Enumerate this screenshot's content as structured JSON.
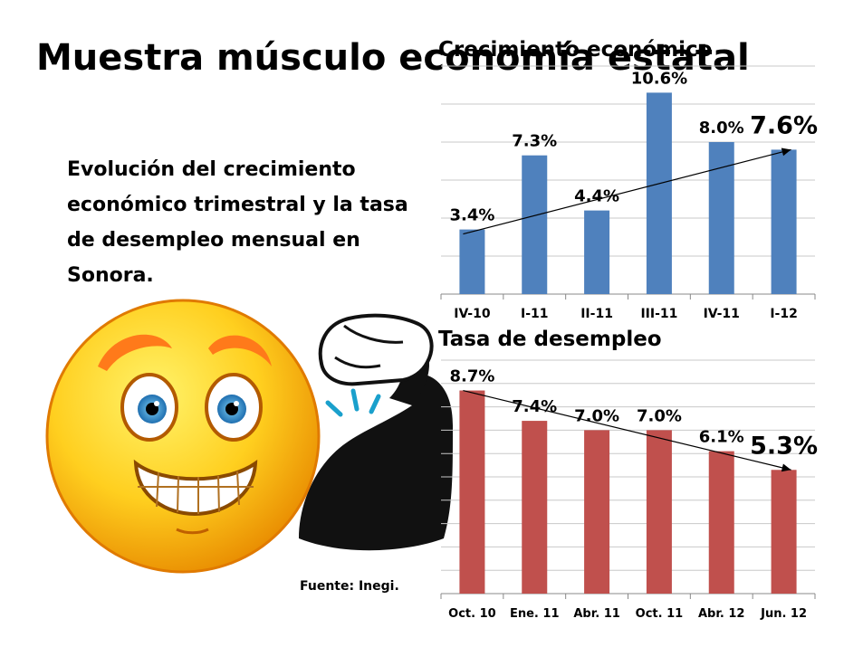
{
  "title": "Muestra músculo economía estatal",
  "subtitle": "Evolución del crecimiento económico trimestral y la tasa de desempleo mensual en Sonora.",
  "source": "Fuente: Inegi.",
  "colors": {
    "growth_bar": "#4f81bd",
    "unemployment_bar": "#c0504d",
    "face": "#f7b500",
    "arm": "#111111"
  },
  "chart_data": [
    {
      "type": "bar",
      "title": "Crecimiento económico",
      "categories": [
        "IV-10",
        "I-11",
        "II-11",
        "III-11",
        "IV-11",
        "I-12"
      ],
      "values": [
        3.4,
        7.3,
        4.4,
        10.6,
        8.0,
        7.6
      ],
      "labels": [
        "3.4%",
        "7.3%",
        "4.4%",
        "10.6%",
        "8.0%",
        "7.6%"
      ],
      "ylim": [
        0,
        12
      ],
      "grid": true,
      "trend_arrow": {
        "from": 3.4,
        "to": 7.6
      }
    },
    {
      "type": "bar",
      "title": "Tasa de desempleo",
      "categories": [
        "Oct. 10",
        "Ene. 11",
        "Abr. 11",
        "Oct. 11",
        "Abr. 12",
        "Jun. 12"
      ],
      "values": [
        8.7,
        7.4,
        7.0,
        7.0,
        6.1,
        5.3
      ],
      "labels": [
        "8.7%",
        "7.4%",
        "7.0%",
        "7.0%",
        "6.1%",
        "5.3%"
      ],
      "ylim": [
        0,
        10
      ],
      "grid": true,
      "trend_arrow": {
        "from": 8.7,
        "to": 5.3
      }
    }
  ]
}
